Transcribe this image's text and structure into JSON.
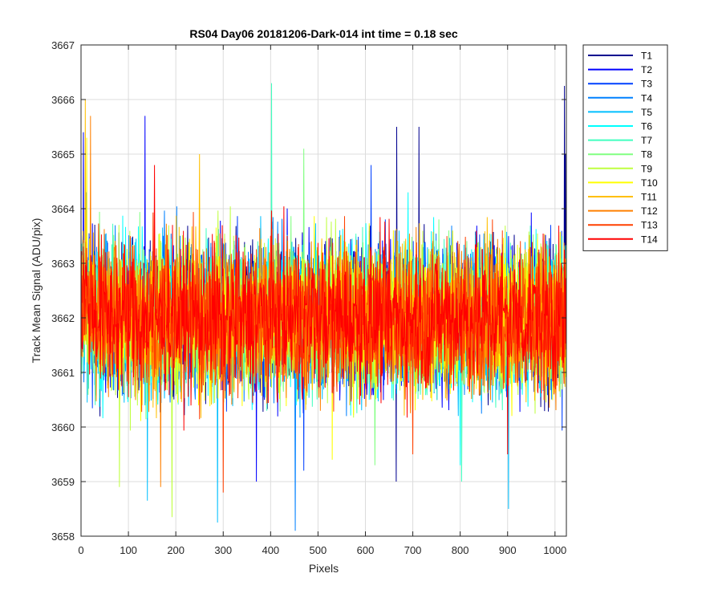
{
  "chart_data": {
    "type": "line",
    "title": "RS04 Day06 20181206-Dark-014 int time = 0.18 sec",
    "xlabel": "Pixels",
    "ylabel": "Track Mean Signal (ADU/pix)",
    "xlim": [
      0,
      1024
    ],
    "ylim": [
      3658,
      3667
    ],
    "xticks": [
      0,
      100,
      200,
      300,
      400,
      500,
      600,
      700,
      800,
      900,
      1000
    ],
    "yticks": [
      3658,
      3659,
      3660,
      3661,
      3662,
      3663,
      3664,
      3665,
      3666,
      3667
    ],
    "grid": true,
    "legend_position": "outside-top-right",
    "noise": {
      "n_points": 1024,
      "center": 3662.0,
      "spread": 1.1,
      "start_offset": 0.5
    },
    "series": [
      {
        "name": "T1",
        "color": "#00008f",
        "spikes": [
          [
            665,
            3659.0
          ],
          [
            666,
            3665.5
          ],
          [
            713,
            3665.5
          ],
          [
            1020,
            3666.25
          ],
          [
            1022,
            3665.0
          ]
        ]
      },
      {
        "name": "T2",
        "color": "#0000ff",
        "spikes": [
          [
            135,
            3665.7
          ],
          [
            5,
            3665.4
          ],
          [
            370,
            3659.0
          ]
        ]
      },
      {
        "name": "T3",
        "color": "#0040ff",
        "spikes": [
          [
            612,
            3664.8
          ],
          [
            470,
            3659.2
          ]
        ]
      },
      {
        "name": "T4",
        "color": "#0080ff",
        "spikes": [
          [
            452,
            3658.1
          ],
          [
            560,
            3660.2
          ]
        ]
      },
      {
        "name": "T5",
        "color": "#00bfff",
        "spikes": [
          [
            288,
            3658.25
          ],
          [
            902,
            3658.5
          ],
          [
            140,
            3658.65
          ]
        ]
      },
      {
        "name": "T6",
        "color": "#00ffff",
        "spikes": [
          [
            690,
            3664.3
          ],
          [
            800,
            3659.3
          ]
        ]
      },
      {
        "name": "T7",
        "color": "#40ffbf",
        "spikes": [
          [
            402,
            3666.3
          ],
          [
            803,
            3659.0
          ]
        ]
      },
      {
        "name": "T8",
        "color": "#80ff80",
        "spikes": [
          [
            470,
            3665.1
          ],
          [
            620,
            3659.3
          ]
        ]
      },
      {
        "name": "T9",
        "color": "#bfff40",
        "spikes": [
          [
            192,
            3658.35
          ],
          [
            81,
            3658.9
          ]
        ]
      },
      {
        "name": "T10",
        "color": "#ffff00",
        "spikes": [
          [
            12,
            3665.3
          ],
          [
            530,
            3659.4
          ]
        ]
      },
      {
        "name": "T11",
        "color": "#ffbf00",
        "spikes": [
          [
            9,
            3666.0
          ],
          [
            250,
            3665.0
          ]
        ]
      },
      {
        "name": "T12",
        "color": "#ff8000",
        "spikes": [
          [
            20,
            3665.7
          ],
          [
            168,
            3658.9
          ]
        ]
      },
      {
        "name": "T13",
        "color": "#ff4000",
        "spikes": [
          [
            300,
            3658.8
          ],
          [
            700,
            3659.5
          ]
        ]
      },
      {
        "name": "T14",
        "color": "#ff0000",
        "spikes": [
          [
            155,
            3664.8
          ],
          [
            900,
            3659.5
          ]
        ]
      }
    ]
  }
}
